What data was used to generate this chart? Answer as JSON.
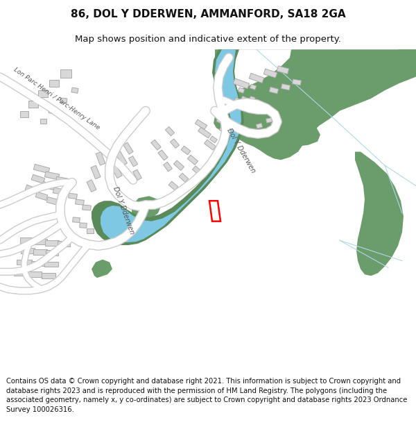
{
  "title_line1": "86, DOL Y DDERWEN, AMMANFORD, SA18 2GA",
  "title_line2": "Map shows position and indicative extent of the property.",
  "footer": "Contains OS data © Crown copyright and database right 2021. This information is subject to Crown copyright and database rights 2023 and is reproduced with the permission of HM Land Registry. The polygons (including the associated geometry, namely x, y co-ordinates) are subject to Crown copyright and database rights 2023 Ordnance Survey 100026316.",
  "bg_color": "#ffffff",
  "map_bg": "#ffffff",
  "green_color": "#6b9c6b",
  "river_color": "#7ec8e3",
  "river_bank_color": "#5a8a5a",
  "building_color": "#d8d8d8",
  "building_edge": "#aaaaaa",
  "road_fill": "#ffffff",
  "road_edge": "#cccccc",
  "plot_color": "#ff0000",
  "light_blue": "#b0d8ea",
  "title_fontsize": 11,
  "subtitle_fontsize": 9.5,
  "footer_fontsize": 7.2,
  "label_color": "#555555"
}
